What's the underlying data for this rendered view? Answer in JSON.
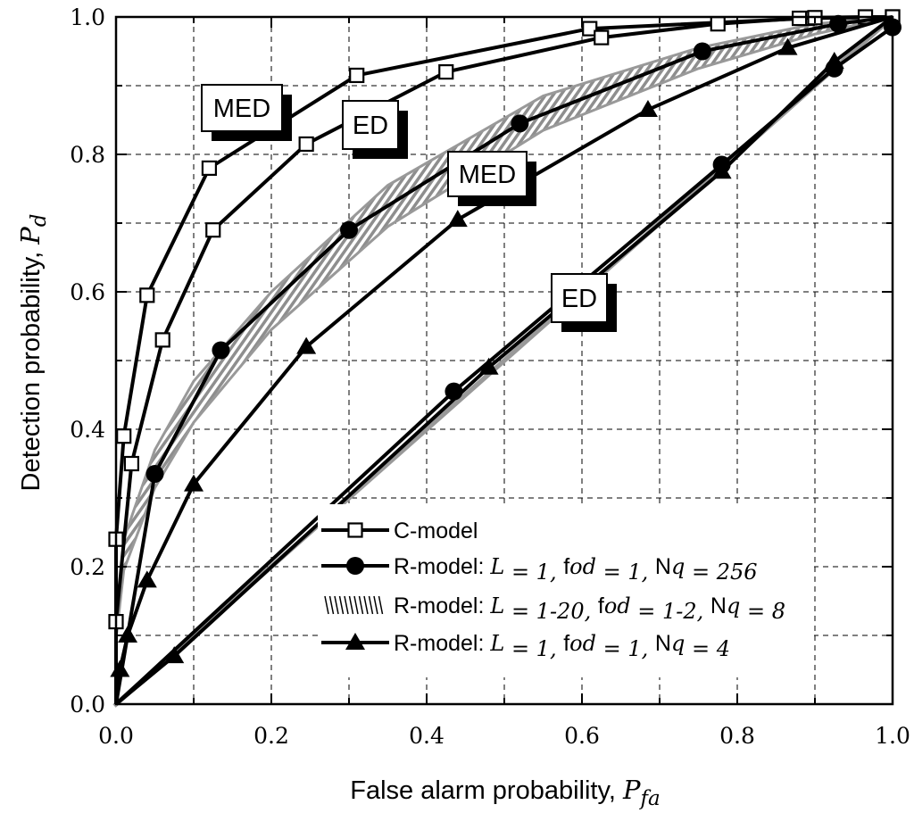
{
  "chart_data": {
    "type": "line",
    "xlabel": "False alarm probability, ",
    "xlabel_symbol": "P",
    "xlabel_sub": "fa",
    "ylabel": "Detection probability, ",
    "ylabel_symbol": "P",
    "ylabel_sub": "d",
    "xlim": [
      0,
      1
    ],
    "ylim": [
      0,
      1
    ],
    "xticks": [
      "0.0",
      "0.2",
      "0.4",
      "0.6",
      "0.8",
      "1.0"
    ],
    "yticks": [
      "0.0",
      "0.2",
      "0.4",
      "0.6",
      "0.8",
      "1.0"
    ],
    "grid": true,
    "legend_position": "bottom-right",
    "legend": [
      {
        "name": "C-model",
        "marker": "open-square"
      },
      {
        "name": "R-model: L = 1, fod = 1, Nq = 256",
        "marker": "circle",
        "parts": [
          "R-model: ",
          "L",
          " = 1, ",
          "f",
          "od",
          " = 1, ",
          "N",
          "q",
          " = 256"
        ]
      },
      {
        "name": "R-model: L = 1-20, fod = 1-2, Nq = 8",
        "marker": "hatched-band",
        "parts": [
          "R-model: ",
          "L",
          " = 1-20, ",
          "f",
          "od",
          " = 1-2, ",
          "N",
          "q",
          " = 8"
        ]
      },
      {
        "name": "R-model: L = 1, fod = 1, Nq = 4",
        "marker": "triangle",
        "parts": [
          "R-model: ",
          "L",
          " = 1, ",
          "f",
          "od",
          " = 1, ",
          "N",
          "q",
          " = 4"
        ]
      }
    ],
    "annotations": [
      {
        "text": "MED",
        "points_to": "C-model MED curve"
      },
      {
        "text": "ED",
        "points_to": "C-model ED curve"
      },
      {
        "text": "MED",
        "points_to": "R-model MED curves"
      },
      {
        "text": "ED",
        "points_to": "R-model ED curves"
      }
    ],
    "series": [
      {
        "name": "C-model (MED)",
        "marker": "square",
        "color": "#000000",
        "x": [
          0.0,
          0.0,
          0.01,
          0.04,
          0.12,
          0.31,
          0.61,
          0.89,
          1.0
        ],
        "y": [
          0.0,
          0.24,
          0.39,
          0.595,
          0.78,
          0.915,
          0.983,
          0.998,
          1.0
        ]
      },
      {
        "name": "C-model (ED)",
        "marker": "square",
        "color": "#000000",
        "x": [
          0.0,
          0.0,
          0.02,
          0.06,
          0.125,
          0.245,
          0.425,
          0.625,
          0.775,
          0.88,
          0.9,
          0.965,
          1.0
        ],
        "y": [
          0.0,
          0.12,
          0.35,
          0.53,
          0.69,
          0.815,
          0.92,
          0.97,
          0.99,
          0.998,
          0.999,
          1.0,
          1.0
        ]
      },
      {
        "name": "R-model Nq = 256 (MED)",
        "marker": "circle",
        "color": "#000000",
        "x": [
          0.0,
          0.05,
          0.135,
          0.3,
          0.52,
          0.755,
          0.93,
          1.0
        ],
        "y": [
          0.0,
          0.335,
          0.515,
          0.69,
          0.845,
          0.95,
          0.99,
          1.0
        ]
      },
      {
        "name": "R-model Nq = 4 (MED)",
        "marker": "triangle",
        "color": "#000000",
        "x": [
          0.0,
          0.005,
          0.015,
          0.04,
          0.1,
          0.245,
          0.44,
          0.685,
          0.865,
          1.0
        ],
        "y": [
          0.0,
          0.05,
          0.1,
          0.18,
          0.32,
          0.52,
          0.705,
          0.865,
          0.955,
          1.0
        ]
      },
      {
        "name": "R-model Nq = 256 (ED)",
        "marker": "circle",
        "color": "#000000",
        "x": [
          0.0,
          0.435,
          0.78,
          0.925,
          1.0
        ],
        "y": [
          0.0,
          0.455,
          0.785,
          0.925,
          0.985
        ]
      },
      {
        "name": "R-model Nq = 4 (ED)",
        "marker": "triangle",
        "color": "#000000",
        "x": [
          0.0,
          0.075,
          0.48,
          0.78,
          0.925,
          1.0
        ],
        "y": [
          0.0,
          0.07,
          0.49,
          0.775,
          0.935,
          1.0
        ]
      },
      {
        "name": "R-model Nq = 8 band upper (MED)",
        "marker": "none",
        "color": "#999999",
        "x": [
          0.0,
          0.01,
          0.05,
          0.1,
          0.2,
          0.35,
          0.55,
          0.75,
          0.9,
          1.0
        ],
        "y": [
          0.115,
          0.24,
          0.37,
          0.47,
          0.6,
          0.755,
          0.885,
          0.955,
          0.99,
          1.0
        ]
      },
      {
        "name": "R-model Nq = 8 band lower (MED)",
        "marker": "none",
        "color": "#999999",
        "x": [
          0.0,
          0.01,
          0.05,
          0.1,
          0.2,
          0.35,
          0.55,
          0.75,
          0.9,
          1.0
        ],
        "y": [
          0.095,
          0.195,
          0.315,
          0.41,
          0.545,
          0.695,
          0.835,
          0.925,
          0.975,
          1.0
        ]
      },
      {
        "name": "R-model Nq = 8 (ED)",
        "marker": "none",
        "color": "#999999",
        "x": [
          0.0,
          1.0
        ],
        "y": [
          0.0,
          1.0
        ]
      }
    ]
  }
}
